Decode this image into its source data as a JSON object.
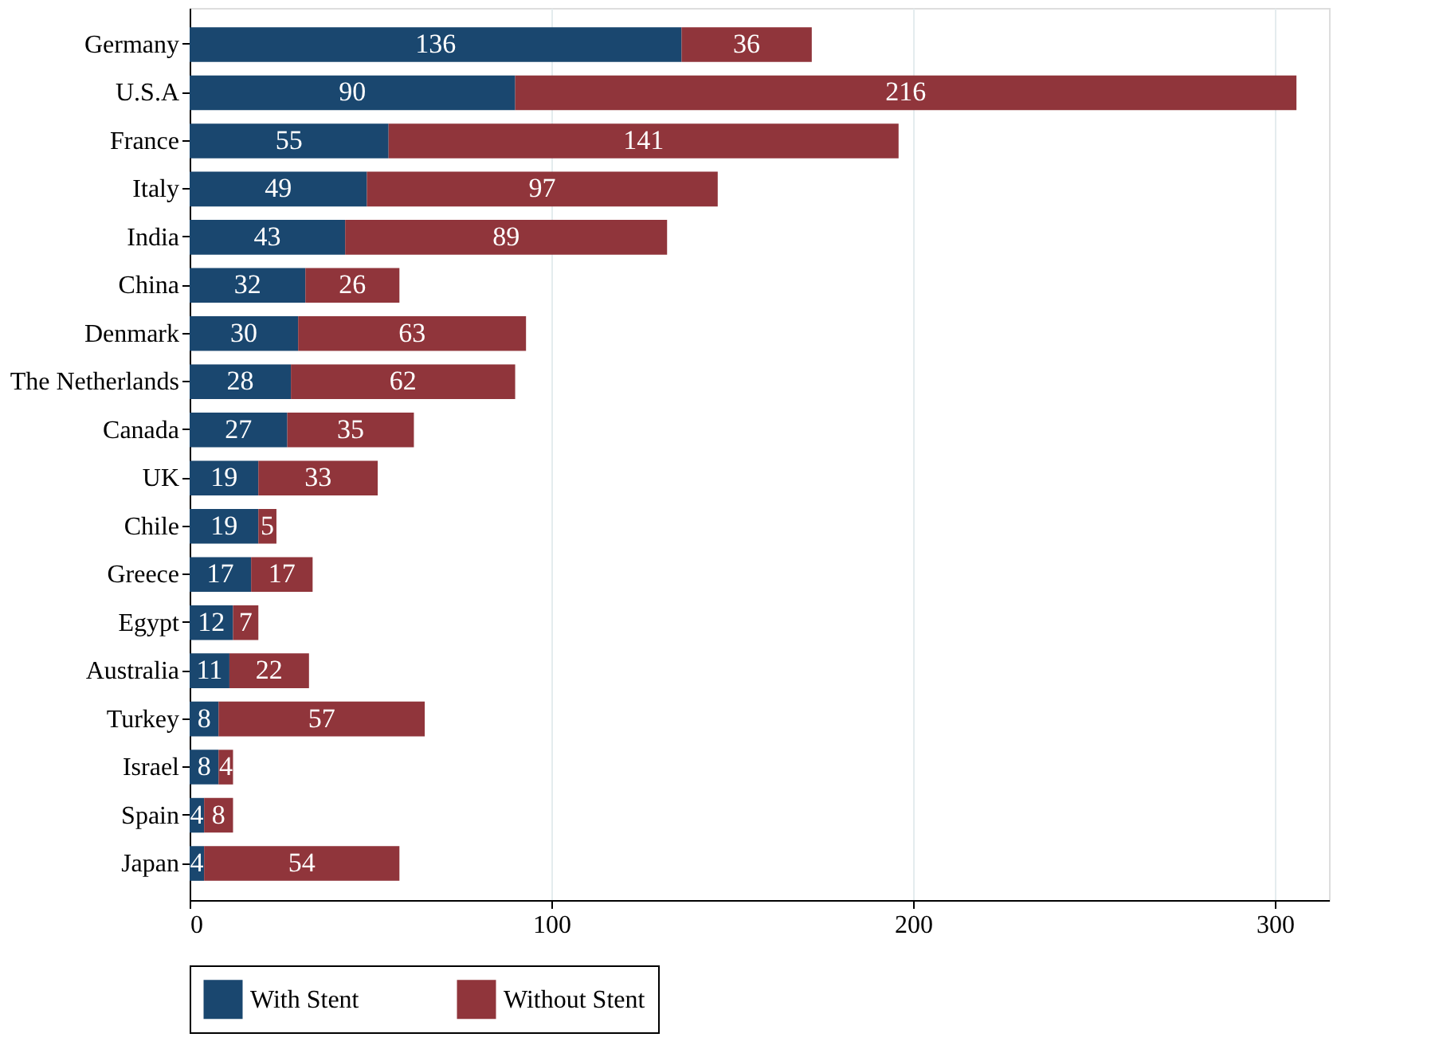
{
  "chart_data": {
    "type": "bar",
    "orientation": "horizontal",
    "stacked": true,
    "categories": [
      "Germany",
      "U.S.A",
      "France",
      "Italy",
      "India",
      "China",
      "Denmark",
      "The Netherlands",
      "Canada",
      "UK",
      "Chile",
      "Greece",
      "Egypt",
      "Australia",
      "Turkey",
      "Israel",
      "Spain",
      "Japan"
    ],
    "series": [
      {
        "name": "With Stent",
        "color": "#1a476f",
        "values": [
          136,
          90,
          55,
          49,
          43,
          32,
          30,
          28,
          27,
          19,
          19,
          17,
          12,
          11,
          8,
          8,
          4,
          4
        ]
      },
      {
        "name": "Without Stent",
        "color": "#90353b",
        "values": [
          36,
          216,
          141,
          97,
          89,
          26,
          63,
          62,
          35,
          33,
          5,
          17,
          7,
          22,
          57,
          4,
          8,
          54
        ]
      }
    ],
    "xlim": [
      0,
      315
    ],
    "xticks": [
      0,
      100,
      200,
      300
    ],
    "grid": "x",
    "legend": "bottom",
    "data_labels": true
  }
}
